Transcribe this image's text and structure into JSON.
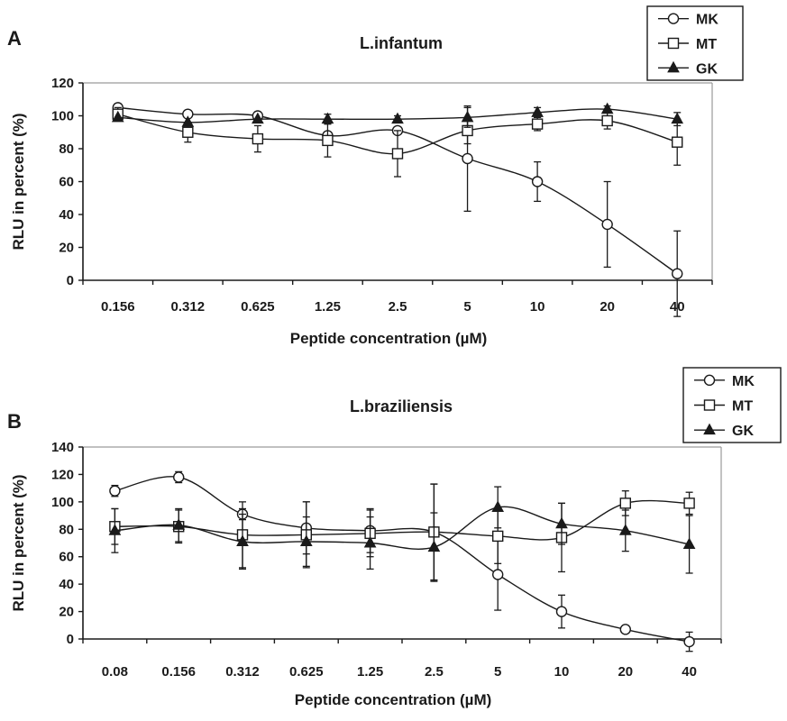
{
  "chart_data": [
    {
      "panel": "A",
      "type": "line",
      "title": "L.infantum",
      "xlabel": "Peptide concentration (µM)",
      "ylabel": "RLU in percent (%)",
      "categories": [
        "0.156",
        "0.312",
        "0.625",
        "1.25",
        "2.5",
        "5",
        "10",
        "20",
        "40"
      ],
      "ylim": [
        0,
        120
      ],
      "yticks": [
        "0",
        "20",
        "40",
        "60",
        "80",
        "100",
        "120"
      ],
      "grid": false,
      "legend": "top-right",
      "series": [
        {
          "name": "MK",
          "marker": "circle-open",
          "values": [
            105,
            101,
            100,
            88,
            91,
            74,
            60,
            34,
            4
          ],
          "errors": [
            0,
            0,
            0,
            0,
            0,
            32,
            12,
            26,
            26
          ]
        },
        {
          "name": "MT",
          "marker": "square-open",
          "values": [
            101,
            90,
            86,
            85,
            77,
            91,
            95,
            97,
            84
          ],
          "errors": [
            4,
            6,
            8,
            10,
            14,
            8,
            4,
            5,
            14
          ]
        },
        {
          "name": "GK",
          "marker": "triangle-filled",
          "values": [
            99,
            96,
            98,
            98,
            98,
            99,
            102,
            104,
            98
          ],
          "errors": [
            0,
            0,
            0,
            3,
            2,
            6,
            3,
            2,
            4
          ]
        }
      ]
    },
    {
      "panel": "B",
      "type": "line",
      "title": "L.braziliensis",
      "xlabel": "Peptide concentration (µM)",
      "ylabel": "RLU in percent (%)",
      "categories": [
        "0.08",
        "0.156",
        "0.312",
        "0.625",
        "1.25",
        "2.5",
        "5",
        "10",
        "20",
        "40"
      ],
      "ylim": [
        0,
        140
      ],
      "yticks": [
        "0",
        "20",
        "40",
        "60",
        "80",
        "100",
        "120",
        "140"
      ],
      "grid": false,
      "legend": "top-right",
      "series": [
        {
          "name": "MK",
          "marker": "circle-open",
          "values": [
            108,
            118,
            91,
            81,
            79,
            78,
            47,
            20,
            7,
            -2
          ],
          "errors": [
            4,
            4,
            4,
            19,
            16,
            35,
            26,
            12,
            0,
            7
          ]
        },
        {
          "name": "MT",
          "marker": "square-open",
          "values": [
            82,
            82,
            76,
            76,
            77,
            78,
            75,
            74,
            99,
            99
          ],
          "errors": [
            13,
            12,
            24,
            24,
            17,
            35,
            20,
            25,
            9,
            8
          ]
        },
        {
          "name": "GK",
          "marker": "triangle-filled",
          "values": [
            79,
            83,
            71,
            71,
            70,
            67,
            96,
            84,
            79,
            69
          ],
          "errors": [
            16,
            12,
            20,
            18,
            19,
            25,
            15,
            15,
            15,
            21
          ]
        }
      ]
    }
  ]
}
